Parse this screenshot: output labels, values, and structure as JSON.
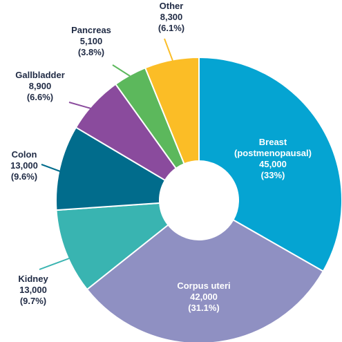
{
  "chart_data": {
    "type": "donut",
    "categories": [
      "Breast\n(postmenopausal)",
      "Corpus uteri",
      "Kidney",
      "Colon",
      "Gallbladder",
      "Pancreas",
      "Other"
    ],
    "values": [
      45000,
      42000,
      13000,
      13000,
      8900,
      5100,
      8300
    ],
    "value_labels": [
      "45,000",
      "42,000",
      "13,000",
      "13,000",
      "8,900",
      "5,100",
      "8,300"
    ],
    "percent_labels": [
      "(33%)",
      "(31.1%)",
      "(9.7%)",
      "(9.6%)",
      "(6.6%)",
      "(3.8%)",
      "(6.1%)"
    ],
    "colors": [
      "#05a4d2",
      "#8f90c2",
      "#39b4b1",
      "#016c8c",
      "#8a4b9d",
      "#5cb85c",
      "#fbbd26"
    ]
  }
}
